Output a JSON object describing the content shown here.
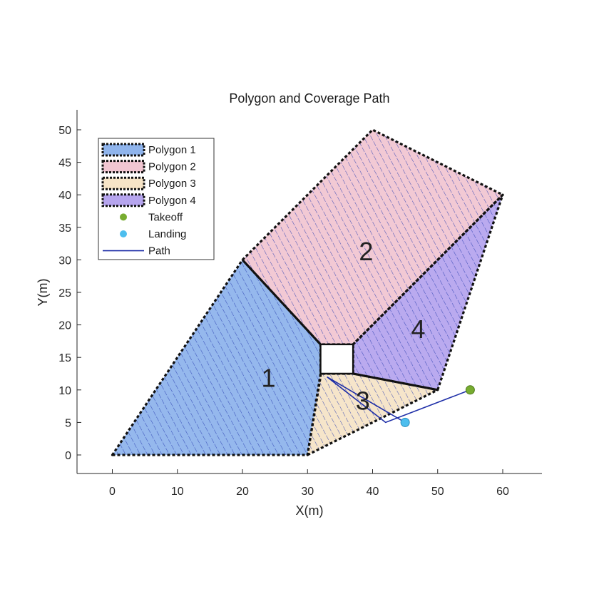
{
  "chart_data": {
    "type": "area",
    "title": "Polygon and Coverage Path",
    "xlabel": "X(m)",
    "ylabel": "Y(m)",
    "xlim": [
      -5,
      66
    ],
    "ylim": [
      -3,
      53
    ],
    "xticks": [
      0,
      10,
      20,
      30,
      40,
      50,
      60
    ],
    "yticks": [
      0,
      5,
      10,
      15,
      20,
      25,
      30,
      35,
      40,
      45,
      50
    ],
    "grid": false,
    "legend_position": "top-left",
    "polygons": [
      {
        "name": "Polygon 1",
        "label": "1",
        "label_pos": [
          24,
          11.5
        ],
        "fill": "#8fb4ec",
        "points": [
          [
            0,
            0
          ],
          [
            30,
            0
          ],
          [
            32,
            12
          ],
          [
            32,
            17
          ],
          [
            20,
            30
          ]
        ],
        "hatch": "#2a3fb0"
      },
      {
        "name": "Polygon 2",
        "label": "2",
        "label_pos": [
          39,
          31
        ],
        "fill": "#f1c6d2",
        "points": [
          [
            20,
            30
          ],
          [
            40,
            50
          ],
          [
            60,
            40
          ],
          [
            37,
            17
          ],
          [
            32,
            17
          ]
        ],
        "hatch": "#2a3fb0"
      },
      {
        "name": "Polygon 3",
        "label": "3",
        "label_pos": [
          38.5,
          8
        ],
        "fill": "#f6e4c7",
        "points": [
          [
            30,
            0
          ],
          [
            50,
            10
          ],
          [
            37,
            12.5
          ],
          [
            32,
            12.5
          ]
        ],
        "hatch": "#2a3fb0"
      },
      {
        "name": "Polygon 4",
        "label": "4",
        "label_pos": [
          47,
          19
        ],
        "fill": "#b6a5ee",
        "points": [
          [
            37,
            17
          ],
          [
            60,
            40
          ],
          [
            50,
            10
          ],
          [
            37,
            12.5
          ]
        ],
        "hatch": "#2a3fb0"
      }
    ],
    "obstacle": [
      [
        32,
        12.5
      ],
      [
        37,
        12.5
      ],
      [
        37,
        17
      ],
      [
        32,
        17
      ]
    ],
    "takeoff": {
      "name": "Takeoff",
      "x": 55,
      "y": 10,
      "color": "#77ac30"
    },
    "landing": {
      "name": "Landing",
      "x": 45,
      "y": 5,
      "color": "#4dbeee"
    },
    "path": {
      "name": "Path",
      "color": "#1f2fa8",
      "points": [
        [
          55,
          10
        ],
        [
          42,
          5
        ],
        [
          33,
          12
        ],
        [
          45,
          5
        ]
      ]
    }
  }
}
